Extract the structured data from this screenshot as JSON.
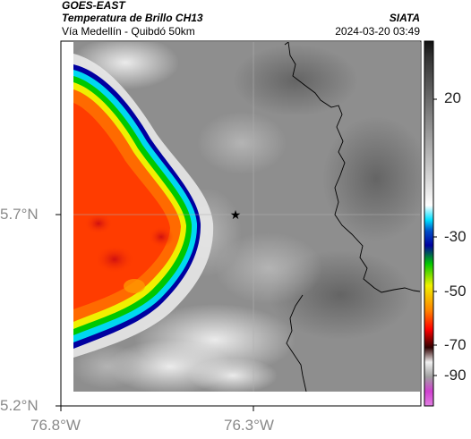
{
  "header": {
    "satellite": "GOES-EAST",
    "product": "Temperatura de Brillo CH13",
    "region": "Vía Medellín - Quibdó 50km",
    "agency": "SIATA",
    "timestamp": "2024-03-20 03:49"
  },
  "map": {
    "x_ticks": [
      "76.8°W",
      "76.3°W"
    ],
    "y_ticks": [
      "5.7°N",
      "5.2°N"
    ],
    "marker": "star-icon",
    "background_color": "#8c8c8c"
  },
  "colorbar": {
    "ticks": [
      "20",
      "-30",
      "-50",
      "-70",
      "-90"
    ],
    "colors": {
      "cold_top": "#ff3c00",
      "green": "#00c800",
      "blue": "#0000a0",
      "magenta": "#d040d0"
    }
  }
}
